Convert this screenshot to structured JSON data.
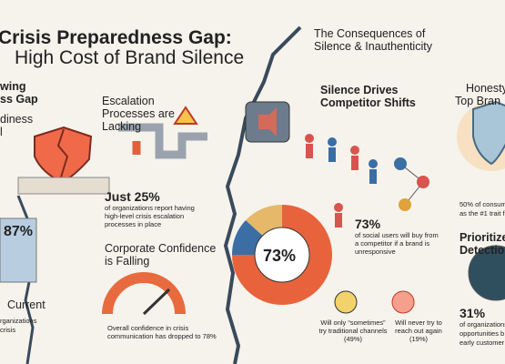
{
  "header": {
    "title_line1": "Crisis Preparedness Gap:",
    "title_line2": "High Cost of Brand Silence"
  },
  "left_panel": {
    "heading_1": "wing",
    "heading_2": "ss Gap",
    "sub_1": "diness",
    "sub_2": "l",
    "stat": "87%",
    "caption": "Current",
    "text_1": "rganizations",
    "text_2": "crisis"
  },
  "escalation": {
    "title": "Escalation Processes are Lacking",
    "stat": "Just 25%",
    "text": "of organizations report having high-level crisis escalation processes in place"
  },
  "confidence": {
    "title": "Corporate Confidence is Falling",
    "text": "Overall confidence in crisis communication has dropped to 78%"
  },
  "consequences": {
    "title": "The Consequences of Silence & Inauthenticity"
  },
  "competitor": {
    "title": "Silence Drives Competitor Shifts",
    "stat": "73%",
    "text": "of social users will buy from a competitor if a brand is unresponsive",
    "donut_label": "73%",
    "sometimes": "Will only “sometimes” try traditional channels (49%)",
    "never": "Will never try to reach out again (19%)"
  },
  "right_panel": {
    "heading_1": "Honesty",
    "heading_2": "Top Bran",
    "text_1": "50% of consum",
    "text_2": "as the #1 trait fo",
    "heading_3": "Prioritize",
    "heading_4": "Detection",
    "stat": "31%",
    "text_3": "of organizations",
    "text_4": "opportunities b",
    "text_5": "early customer"
  }
}
